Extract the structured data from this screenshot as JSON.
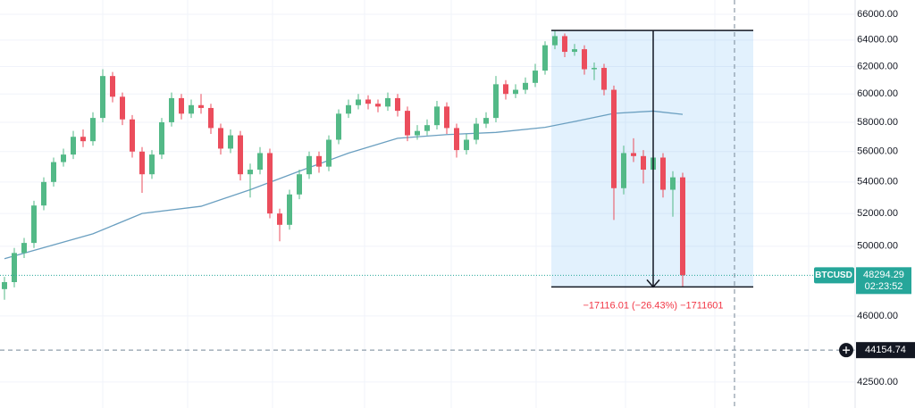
{
  "chart_data": {
    "type": "candlestick",
    "symbol": "BTCUSD",
    "log_scale": true,
    "ylim": [
      41200,
      67140
    ],
    "yticks": [
      {
        "value": 42500,
        "label": "42500.00"
      },
      {
        "value": 46000,
        "label": "46000.00"
      },
      {
        "value": 50000,
        "label": "50000.00"
      },
      {
        "value": 52000,
        "label": "52000.00"
      },
      {
        "value": 54000,
        "label": "54000.00"
      },
      {
        "value": 56000,
        "label": "56000.00"
      },
      {
        "value": 58000,
        "label": "58000.00"
      },
      {
        "value": 60000,
        "label": "60000.00"
      },
      {
        "value": 62000,
        "label": "62000.00"
      },
      {
        "value": 64000,
        "label": "64000.00"
      },
      {
        "value": 66000,
        "label": "66000.00"
      }
    ],
    "grid": true,
    "up_color": "#53b987",
    "down_color": "#eb4d5c",
    "open": [
      47500,
      47900,
      49600,
      50200,
      52500,
      54000,
      55300,
      55800,
      57000,
      56700,
      58300,
      61300,
      59800,
      58200,
      56000,
      54500,
      55800,
      58000,
      59700,
      58600,
      59200,
      59000,
      57600,
      56200,
      57100,
      54500,
      54800,
      55900,
      52000,
      51300,
      53200,
      54500,
      55700,
      55000,
      56800,
      58600,
      59200,
      59600,
      59300,
      59100,
      59700,
      58800,
      57100,
      57400,
      57800,
      59100,
      57600,
      56100,
      56800,
      57900,
      58300,
      60700,
      60000,
      60300,
      60800,
      61700,
      63600,
      64300,
      63100,
      63300,
      61800,
      61900,
      60300,
      53600,
      55900,
      55700,
      54800,
      55600,
      53500,
      54300
    ],
    "high": [
      48200,
      49900,
      50500,
      52800,
      54300,
      55600,
      56200,
      57400,
      57500,
      58700,
      61800,
      61600,
      60100,
      58500,
      56300,
      56100,
      58300,
      60100,
      60000,
      59600,
      60000,
      59300,
      57900,
      57500,
      57400,
      55200,
      56300,
      56200,
      52300,
      53500,
      54800,
      56000,
      56000,
      57100,
      58900,
      59600,
      60000,
      59900,
      59600,
      60100,
      60000,
      59100,
      57800,
      58200,
      59500,
      59400,
      57900,
      57200,
      58300,
      58700,
      61300,
      61000,
      60700,
      61200,
      62200,
      63900,
      64740,
      64500,
      63700,
      63600,
      62300,
      62200,
      60600,
      56400,
      56900,
      56100,
      56000,
      55900,
      54700,
      54600
    ],
    "low": [
      46900,
      47600,
      49300,
      49900,
      52200,
      53700,
      55000,
      55500,
      56300,
      56400,
      58000,
      59400,
      57800,
      55600,
      53300,
      54200,
      55500,
      57700,
      58200,
      58300,
      58600,
      57200,
      55800,
      55900,
      54100,
      53000,
      54500,
      51700,
      50300,
      51000,
      52900,
      54200,
      54600,
      54700,
      56500,
      58300,
      58900,
      58900,
      58700,
      58800,
      58400,
      56700,
      56800,
      57100,
      57500,
      57200,
      55600,
      55800,
      56500,
      57600,
      58000,
      59600,
      59700,
      60000,
      60500,
      61400,
      63300,
      62700,
      62800,
      61400,
      61000,
      59900,
      51600,
      53200,
      55300,
      53900,
      54400,
      53000,
      51800,
      47624
    ],
    "close": [
      47900,
      49600,
      50200,
      52500,
      54000,
      55300,
      55800,
      57000,
      56700,
      58300,
      61300,
      59800,
      58200,
      56000,
      54500,
      55800,
      58000,
      59700,
      58600,
      59200,
      59000,
      57600,
      56200,
      57100,
      54500,
      54800,
      55900,
      52000,
      51300,
      53200,
      54500,
      55700,
      55000,
      56800,
      58600,
      59200,
      59600,
      59300,
      59100,
      59700,
      58800,
      57100,
      57400,
      57800,
      59100,
      57600,
      56100,
      56800,
      57900,
      58300,
      60700,
      60000,
      60300,
      60800,
      61700,
      63600,
      64300,
      63100,
      63300,
      61800,
      61900,
      60300,
      53600,
      55900,
      55700,
      54800,
      55600,
      53500,
      54300,
      48294.29
    ],
    "moving_average": {
      "color": "#6a9fc0",
      "x": [
        0,
        9,
        14,
        20,
        25,
        30,
        35,
        40,
        45,
        50,
        55,
        58,
        62,
        66,
        69
      ],
      "values": [
        49260,
        50750,
        52000,
        52450,
        53500,
        54700,
        55900,
        56900,
        57150,
        57300,
        57650,
        58050,
        58620,
        58780,
        58550
      ]
    },
    "last_price": 48294.29,
    "countdown": "02:23:52",
    "crosshair_price": 44154.74,
    "measure": {
      "top": 64740,
      "bottom": 47624,
      "label": "−17116.01 (−26.43%) −1711601"
    }
  }
}
